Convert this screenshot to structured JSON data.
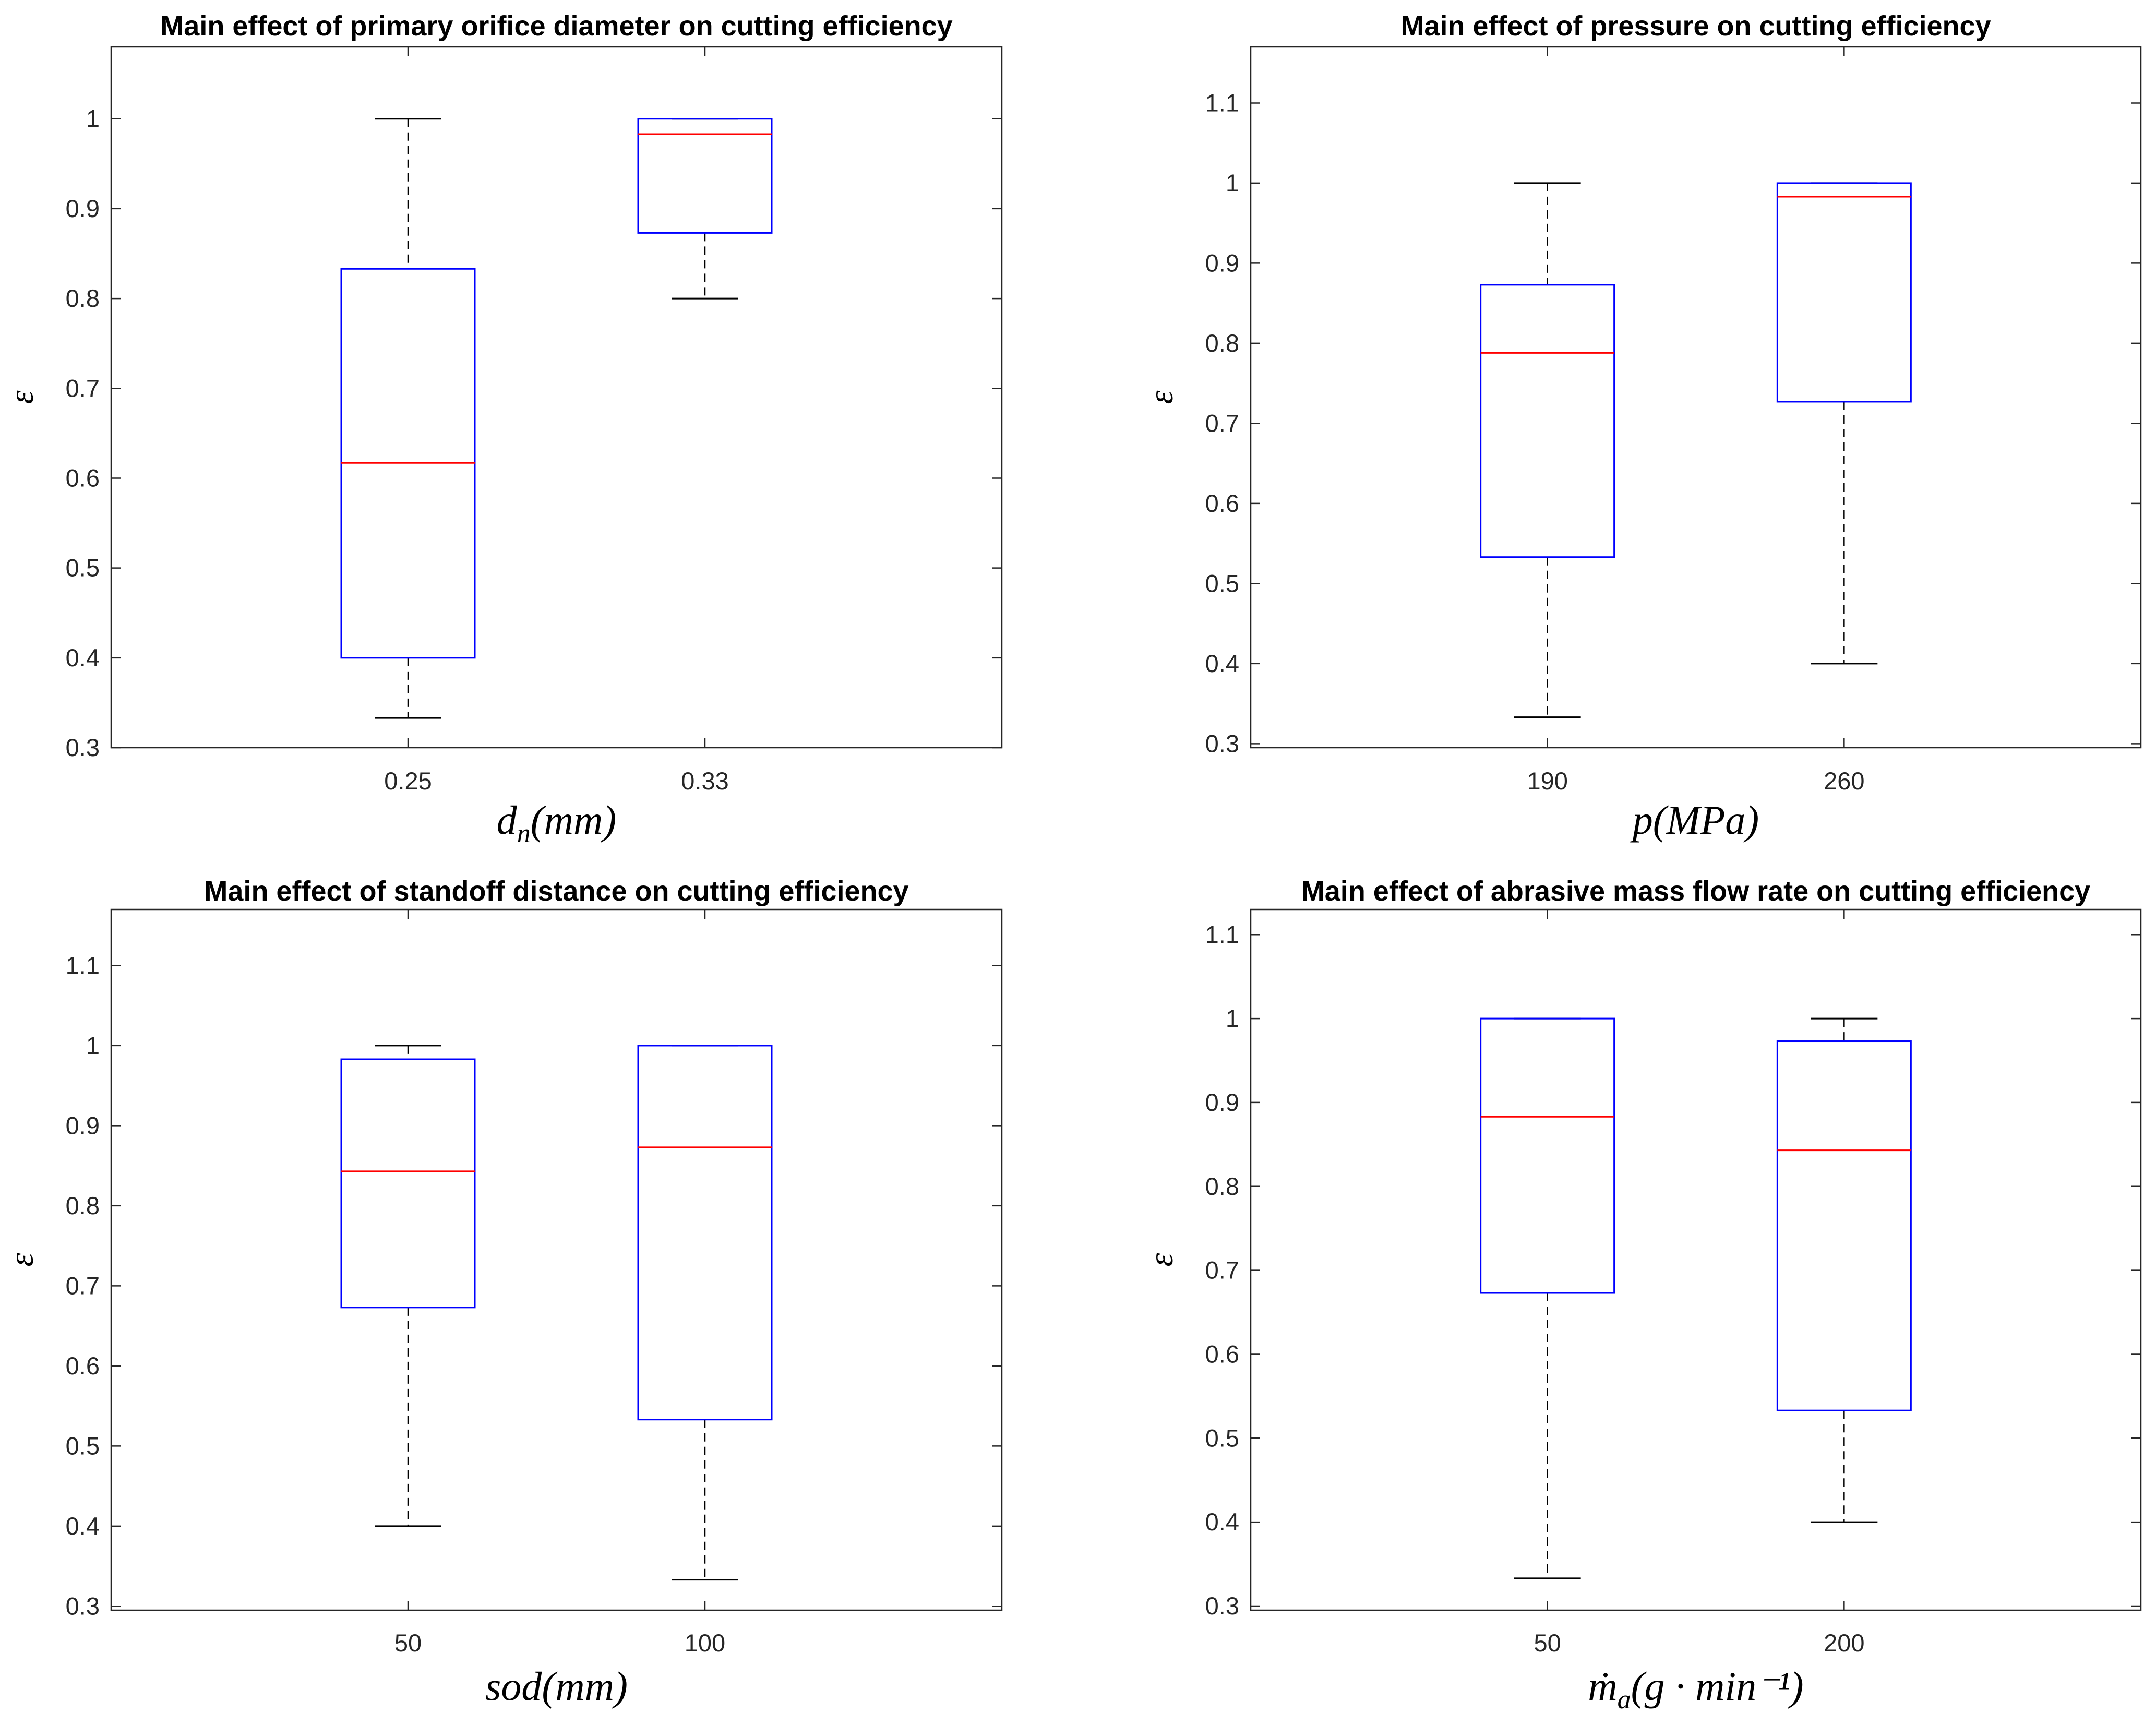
{
  "chart_data": [
    {
      "type": "box",
      "title": "Main effect of primary orifice diameter on cutting efficiency",
      "xlabel": {
        "base": "d",
        "sub": "n",
        "rest": "(mm)"
      },
      "ylabel": "ε",
      "categories": [
        "0.25",
        "0.33"
      ],
      "ylim": [
        0.3,
        1.08
      ],
      "yticks": [
        0.3,
        0.4,
        0.5,
        0.6,
        0.7,
        0.8,
        0.9,
        1
      ],
      "yticklabels": [
        "0.3",
        "0.4",
        "0.5",
        "0.6",
        "0.7",
        "0.8",
        "0.9",
        "1"
      ],
      "boxes": [
        {
          "category": "0.25",
          "whisker_low": 0.333,
          "q1": 0.4,
          "median": 0.617,
          "q3": 0.833,
          "whisker_high": 1.0
        },
        {
          "category": "0.33",
          "whisker_low": 0.8,
          "q1": 0.873,
          "median": 0.983,
          "q3": 1.0,
          "whisker_high": 1.0
        }
      ]
    },
    {
      "type": "box",
      "title": "Main effect of pressure on cutting efficiency",
      "xlabel": {
        "base": "p",
        "sub": "",
        "rest": "(MPa)"
      },
      "ylabel": "ε",
      "categories": [
        "190",
        "260"
      ],
      "ylim": [
        0.295,
        1.17
      ],
      "yticks": [
        0.3,
        0.4,
        0.5,
        0.6,
        0.7,
        0.8,
        0.9,
        1,
        1.1
      ],
      "yticklabels": [
        "0.3",
        "0.4",
        "0.5",
        "0.6",
        "0.7",
        "0.8",
        "0.9",
        "1",
        "1.1"
      ],
      "boxes": [
        {
          "category": "190",
          "whisker_low": 0.333,
          "q1": 0.533,
          "median": 0.788,
          "q3": 0.873,
          "whisker_high": 1.0
        },
        {
          "category": "260",
          "whisker_low": 0.4,
          "q1": 0.727,
          "median": 0.983,
          "q3": 1.0,
          "whisker_high": 1.0
        }
      ]
    },
    {
      "type": "box",
      "title": "Main effect of standoff distance on cutting efficiency",
      "xlabel": {
        "base": "sod",
        "sub": "",
        "rest": "(mm)"
      },
      "ylabel": "ε",
      "categories": [
        "50",
        "100"
      ],
      "ylim": [
        0.295,
        1.17
      ],
      "yticks": [
        0.3,
        0.4,
        0.5,
        0.6,
        0.7,
        0.8,
        0.9,
        1,
        1.1
      ],
      "yticklabels": [
        "0.3",
        "0.4",
        "0.5",
        "0.6",
        "0.7",
        "0.8",
        "0.9",
        "1",
        "1.1"
      ],
      "boxes": [
        {
          "category": "50",
          "whisker_low": 0.4,
          "q1": 0.673,
          "median": 0.843,
          "q3": 0.983,
          "whisker_high": 1.0
        },
        {
          "category": "100",
          "whisker_low": 0.333,
          "q1": 0.533,
          "median": 0.873,
          "q3": 1.0,
          "whisker_high": 1.0
        }
      ]
    },
    {
      "type": "box",
      "title": "Main effect of abrasive mass flow rate on cutting efficiency",
      "xlabel": {
        "base": "ṁ",
        "sub": "a",
        "rest": "(g · min⁻¹)"
      },
      "ylabel": "ε",
      "categories": [
        "50",
        "200"
      ],
      "ylim": [
        0.295,
        1.13
      ],
      "yticks": [
        0.3,
        0.4,
        0.5,
        0.6,
        0.7,
        0.8,
        0.9,
        1,
        1.1
      ],
      "yticklabels": [
        "0.3",
        "0.4",
        "0.5",
        "0.6",
        "0.7",
        "0.8",
        "0.9",
        "1",
        "1.1"
      ],
      "boxes": [
        {
          "category": "50",
          "whisker_low": 0.333,
          "q1": 0.673,
          "median": 0.883,
          "q3": 1.0,
          "whisker_high": 1.0
        },
        {
          "category": "200",
          "whisker_low": 0.4,
          "q1": 0.533,
          "median": 0.843,
          "q3": 0.973,
          "whisker_high": 1.0
        }
      ]
    }
  ],
  "colors": {
    "box": "#0000ff",
    "median": "#ff0000",
    "whisker": "#000000",
    "axis": "#262626"
  }
}
